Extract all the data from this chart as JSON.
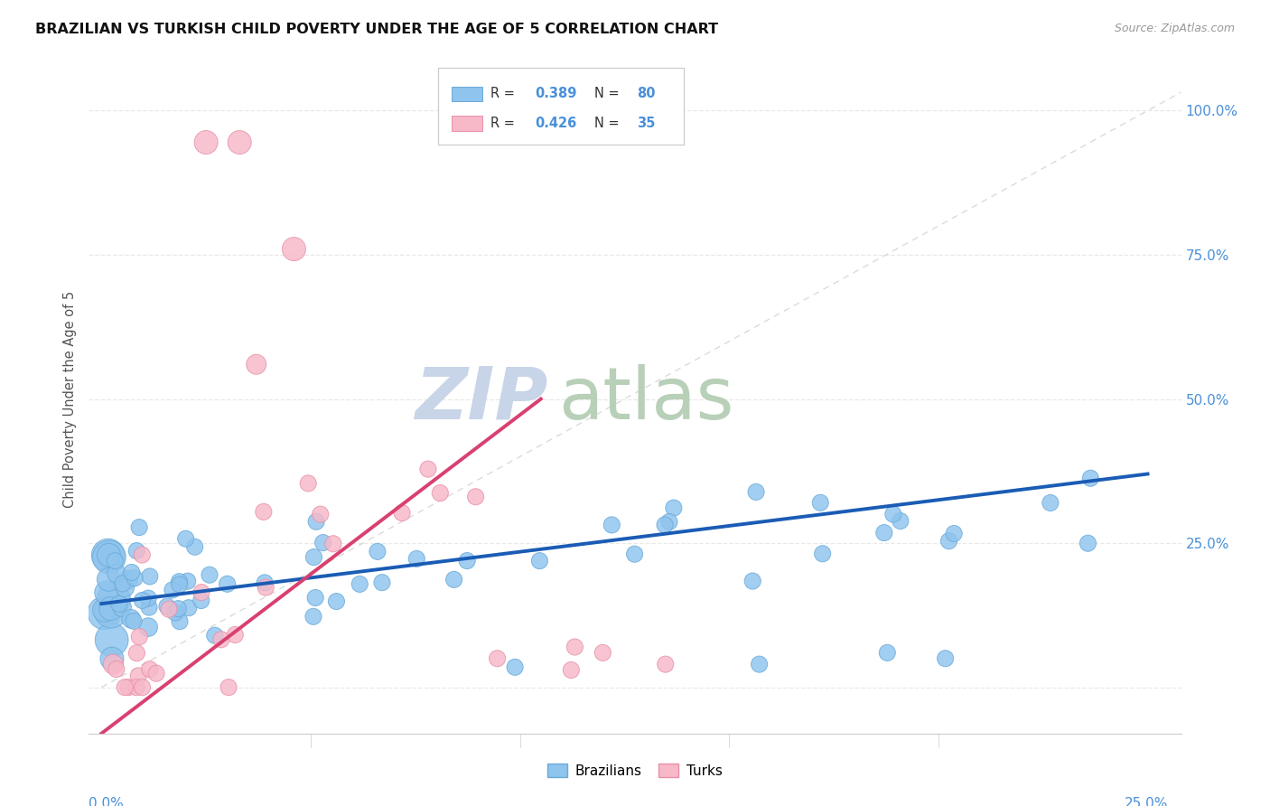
{
  "title": "BRAZILIAN VS TURKISH CHILD POVERTY UNDER THE AGE OF 5 CORRELATION CHART",
  "source": "Source: ZipAtlas.com",
  "ylabel": "Child Poverty Under the Age of 5",
  "brazil_color": "#8ec4ee",
  "brazil_edge": "#6aaad8",
  "turkey_color": "#f7b8c8",
  "turkey_edge": "#e890a8",
  "brazil_line_color": "#1a5cb5",
  "turkey_line_color": "#d94070",
  "diagonal_color": "#cccccc",
  "legend_brazil_label": "Brazilians",
  "legend_turkey_label": "Turks",
  "brazil_R": "0.389",
  "brazil_N": "80",
  "turkey_R": "0.426",
  "turkey_N": "35",
  "watermark_zip": "ZIP",
  "watermark_atlas": "atlas",
  "watermark_color_zip": "#ccd8e8",
  "watermark_color_atlas": "#c8d8c8",
  "grid_color": "#e8e8e8",
  "background_color": "#ffffff",
  "axis_tick_color": "#4a90d9",
  "title_color": "#111111",
  "source_color": "#999999",
  "ylabel_color": "#555555",
  "xlim": [
    -0.003,
    0.258
  ],
  "ylim": [
    -0.08,
    1.08
  ],
  "ytick_vals": [
    0.0,
    0.25,
    0.5,
    0.75,
    1.0
  ],
  "ytick_labels_right": [
    "",
    "25.0%",
    "50.0%",
    "75.0%",
    "100.0%"
  ]
}
